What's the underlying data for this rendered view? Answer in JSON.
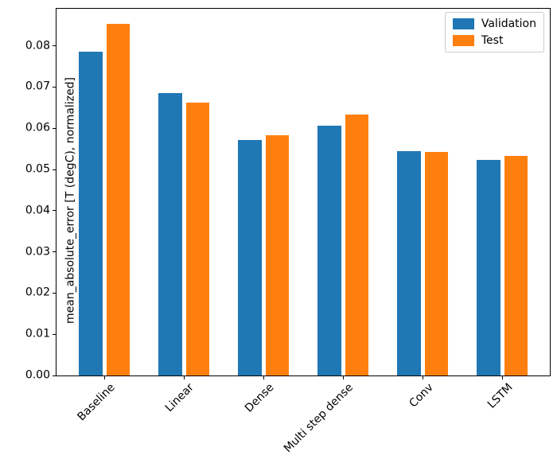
{
  "chart_data": {
    "type": "bar",
    "title": "",
    "xlabel": "",
    "ylabel": "mean_absolute_error [T (degC), normalized]",
    "categories": [
      "Baseline",
      "Linear",
      "Dense",
      "Multi step dense",
      "Conv",
      "LSTM"
    ],
    "series": [
      {
        "name": "Validation",
        "color": "#1f77b4",
        "values": [
          0.0785,
          0.0686,
          0.0571,
          0.0606,
          0.0544,
          0.0523
        ]
      },
      {
        "name": "Test",
        "color": "#ff7f0e",
        "values": [
          0.0853,
          0.0663,
          0.0583,
          0.0633,
          0.0542,
          0.0533
        ]
      }
    ],
    "ylim": [
      0,
      0.089
    ],
    "yticks": [
      "0.00",
      "0.01",
      "0.02",
      "0.03",
      "0.04",
      "0.05",
      "0.06",
      "0.07",
      "0.08"
    ],
    "x_tick_rotation": 45,
    "grid": false,
    "legend_position": "upper right",
    "axis_color": "#000000"
  }
}
